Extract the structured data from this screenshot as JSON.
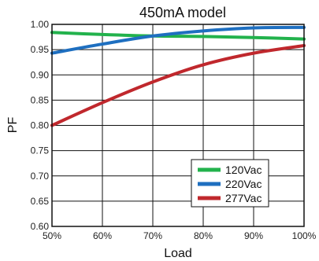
{
  "chart_data": {
    "type": "line",
    "title": "450mA model",
    "xlabel": "Load",
    "ylabel": "PF",
    "x": [
      50,
      60,
      70,
      80,
      90,
      100
    ],
    "x_tick_labels": [
      "50%",
      "60%",
      "70%",
      "80%",
      "90%",
      "100%"
    ],
    "xlim": [
      50,
      100
    ],
    "ylim": [
      0.6,
      1.0
    ],
    "y_ticks": [
      0.6,
      0.65,
      0.7,
      0.75,
      0.8,
      0.85,
      0.9,
      0.95,
      1.0
    ],
    "y_tick_labels": [
      "0.60",
      "0.65",
      "0.70",
      "0.75",
      "0.80",
      "0.85",
      "0.90",
      "0.95",
      "1.00"
    ],
    "grid": true,
    "legend_position": "bottom-right",
    "series": [
      {
        "name": "120Vac",
        "color": "#22b24c",
        "values": [
          0.984,
          0.98,
          0.977,
          0.976,
          0.974,
          0.971
        ]
      },
      {
        "name": "220Vac",
        "color": "#1e6fc0",
        "values": [
          0.943,
          0.961,
          0.977,
          0.987,
          0.993,
          0.994
        ]
      },
      {
        "name": "277Vac",
        "color": "#c0282d",
        "values": [
          0.8,
          0.845,
          0.886,
          0.92,
          0.943,
          0.958
        ]
      }
    ]
  }
}
